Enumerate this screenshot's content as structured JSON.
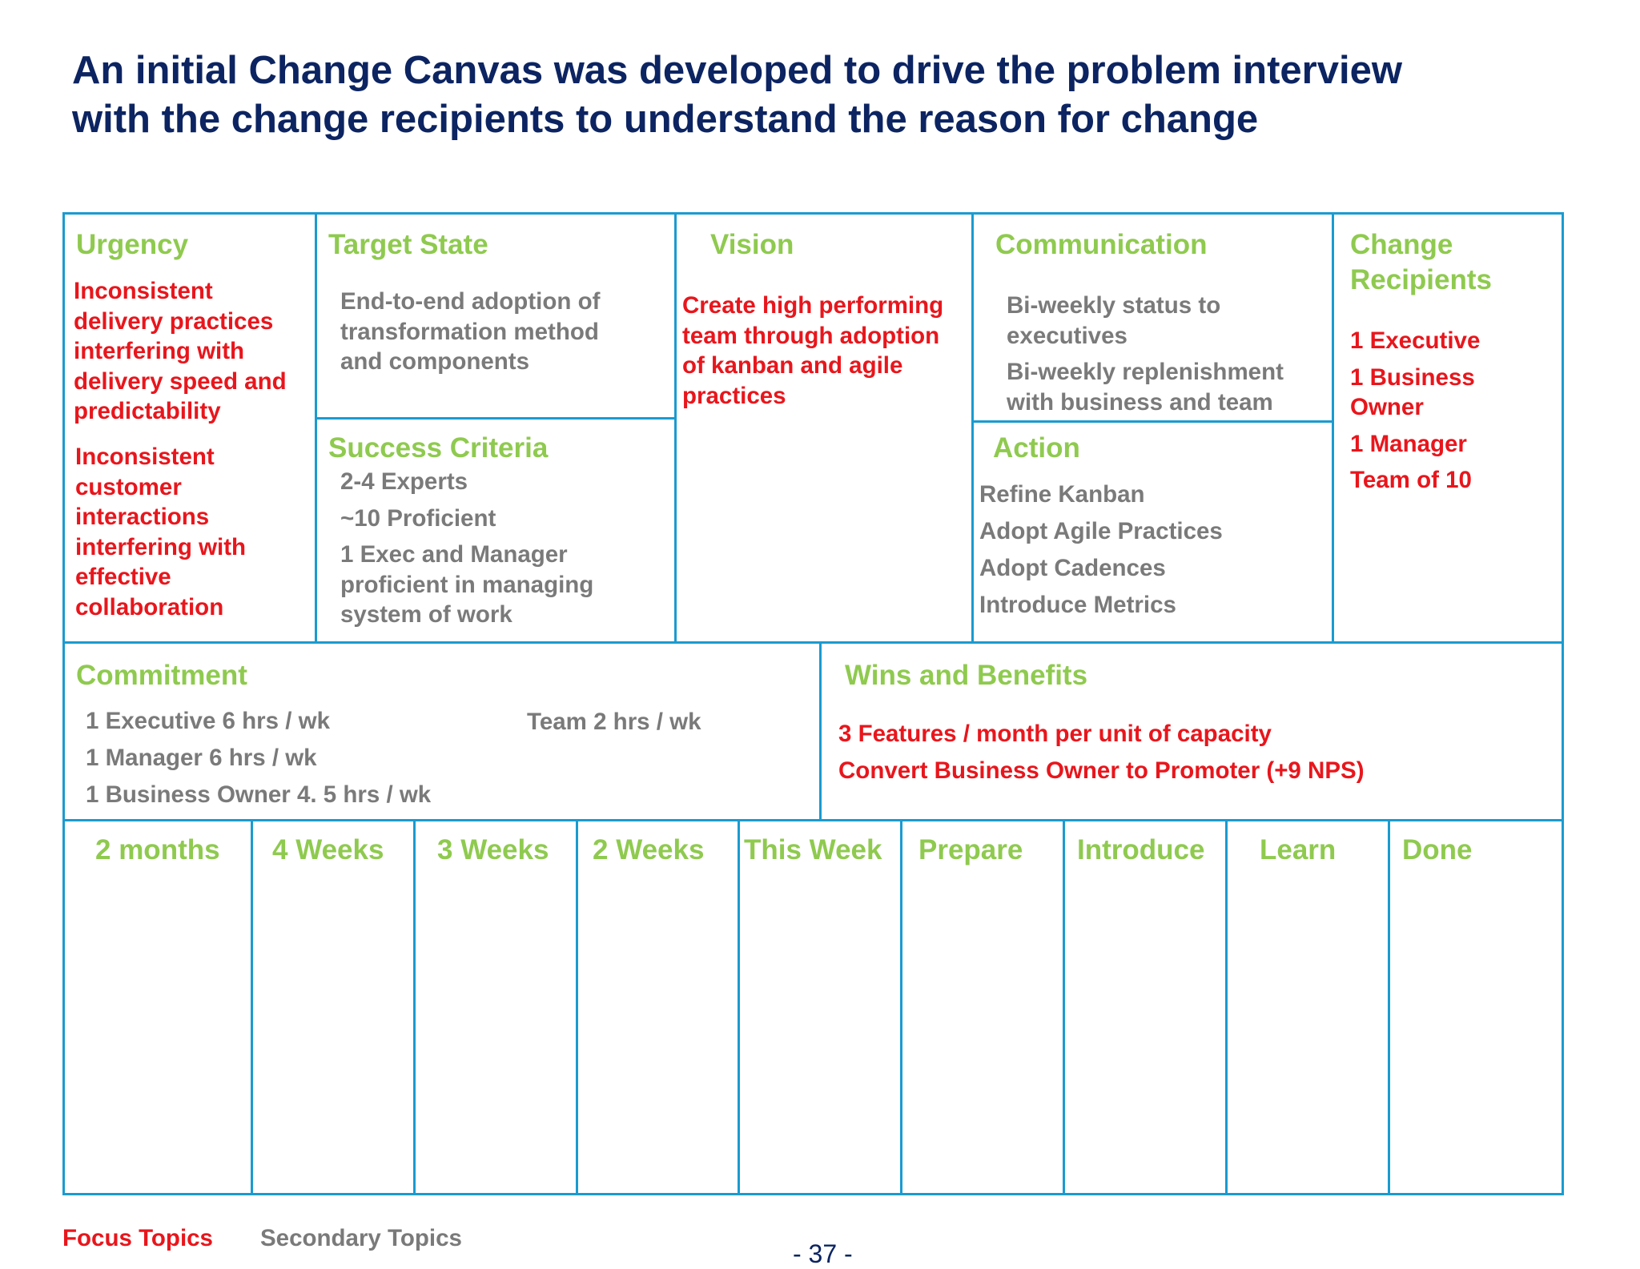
{
  "title": {
    "line1": "An initial Change Canvas was developed to drive the problem interview",
    "line2": "with the change recipients to understand the reason for change"
  },
  "urgency": {
    "heading": "Urgency",
    "item1": [
      "Inconsistent",
      "delivery practices",
      "interfering with",
      "delivery speed and",
      "predictability"
    ],
    "item2": [
      "Inconsistent",
      "customer",
      "interactions",
      "interfering with",
      "effective",
      "collaboration"
    ]
  },
  "target_state": {
    "heading": "Target State",
    "lines": [
      "End-to-end adoption of",
      "transformation method",
      "and components"
    ]
  },
  "success_criteria": {
    "heading": "Success Criteria",
    "items": [
      "2-4 Experts",
      "~10 Proficient"
    ],
    "item3": [
      "1 Exec and Manager",
      "proficient in managing",
      "system of work"
    ]
  },
  "vision": {
    "heading": "Vision",
    "lines": [
      "Create high performing",
      "team through adoption",
      "of kanban and agile",
      "practices"
    ]
  },
  "communication": {
    "heading": "Communication",
    "item1": [
      "Bi-weekly status to",
      "executives"
    ],
    "item2": [
      "Bi-weekly replenishment",
      "with business and team"
    ]
  },
  "action": {
    "heading": "Action",
    "items": [
      "Refine Kanban",
      "Adopt Agile Practices",
      "Adopt Cadences",
      "Introduce Metrics"
    ]
  },
  "change_recipients": {
    "heading_line1": "Change",
    "heading_line2": "Recipients",
    "item1": "1 Executive",
    "item2": [
      "1 Business",
      "Owner"
    ],
    "item3": "1 Manager",
    "item4": "Team of 10"
  },
  "commitment": {
    "heading": "Commitment",
    "items": [
      "1 Executive 6 hrs / wk",
      "1 Manager 6 hrs / wk",
      "1 Business  Owner 4. 5 hrs / wk"
    ],
    "team": "Team 2 hrs / wk"
  },
  "wins": {
    "heading": "Wins and Benefits",
    "items": [
      "3 Features / month per unit of capacity",
      "Convert Business Owner to Promoter (+9 NPS)"
    ]
  },
  "timeline": [
    "2 months",
    "4 Weeks",
    "3 Weeks",
    "2 Weeks",
    "This Week",
    "Prepare",
    "Introduce",
    "Learn",
    "Done"
  ],
  "legend": {
    "focus": "Focus Topics",
    "secondary": "Secondary Topics"
  },
  "page_number": "- 37 -",
  "colors": {
    "title": "#0c2461",
    "heading": "#8fca4f",
    "focus": "#e8161c",
    "secondary": "#7a7a7a",
    "border": "#1a9bd0"
  }
}
